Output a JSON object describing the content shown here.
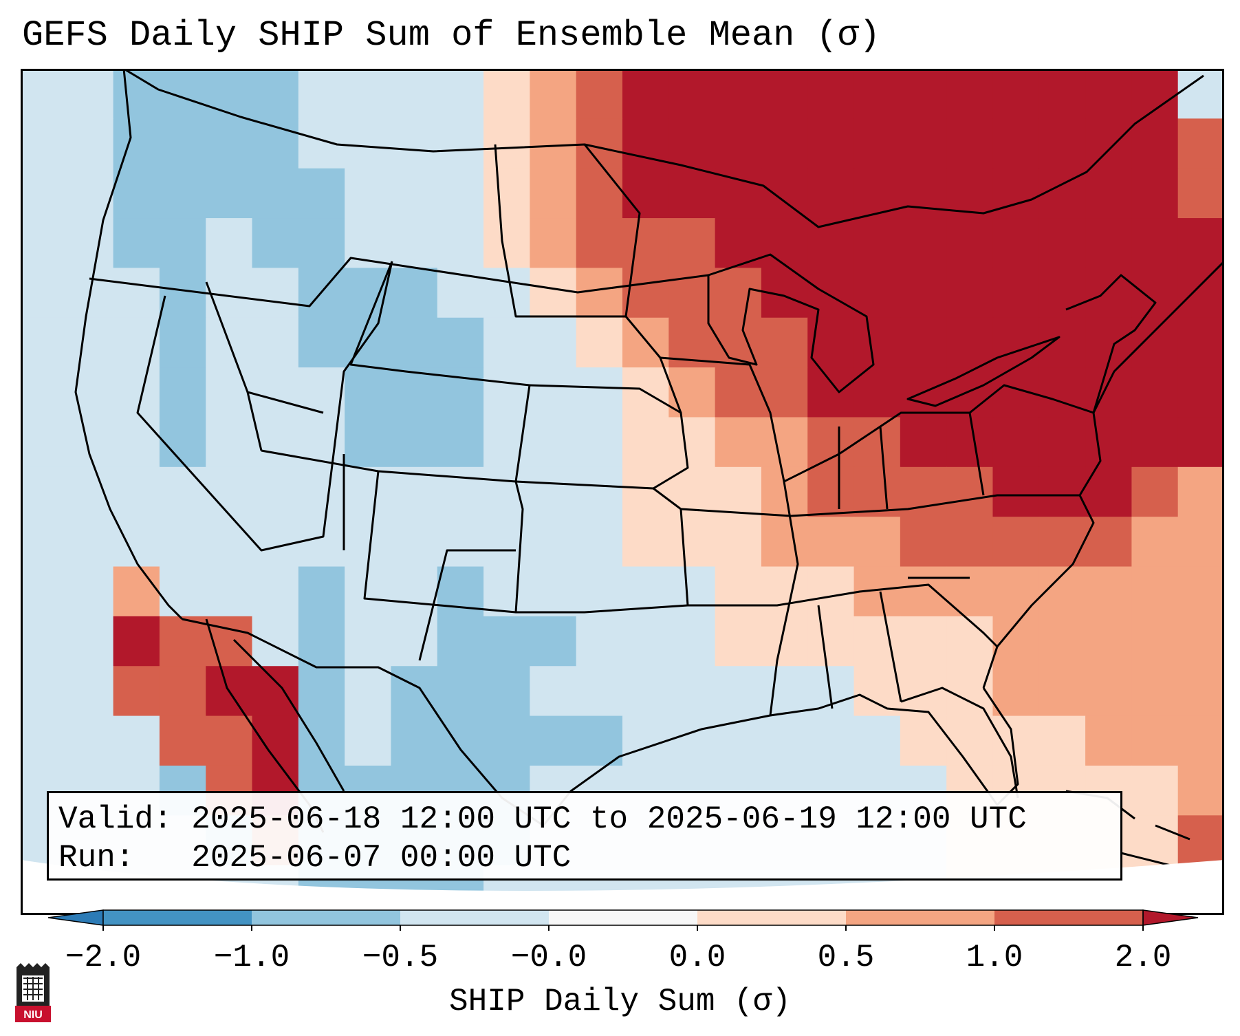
{
  "title": "GEFS Daily SHIP Sum of Ensemble Mean (σ)",
  "info": {
    "valid_label": "Valid:",
    "valid_value": "2025-06-18 12:00 UTC to 2025-06-19 12:00 UTC",
    "run_label": "Run:",
    "run_value": "2025-06-07 00:00 UTC"
  },
  "colorbar": {
    "label": "SHIP Daily Sum (σ)",
    "ticks": [
      "−2.0",
      "−1.0",
      "−0.5",
      "−0.0",
      "0.0",
      "0.5",
      "1.0",
      "2.0"
    ],
    "colors": {
      "under": "#2c7bb6",
      "bins": [
        "#4393c3",
        "#92c5de",
        "#d1e5f0",
        "#f7f7f7",
        "#fddbc7",
        "#f4a582",
        "#d6604d"
      ],
      "over": "#b2182b"
    }
  },
  "map": {
    "region": "Continental United States",
    "outline_color": "#000000",
    "field": {
      "cols": 26,
      "rows": 17,
      "description_legend": "index into colorbar classes: 0=under(<-2.0) 1=-2.0..-1.0 2=-1.0..-0.5 3=-0.5..0.0 4=0.0..0.0 5=0.0..0.5 6=0.5..1.0 7=1.0..2.0 8=over(>2.0)",
      "grid": [
        "33222233335678888888888883",
        "33222233335678888888888887",
        "33222223335678888888888887",
        "33223223335677788888888888",
        "33323322233567778888888888",
        "33323322223356777888888888",
        "33323332223335677888888888",
        "33323332223335566778888888",
        "33333333333335556777788876",
        "33333333333335556667777766",
        "33633323323333355566666666",
        "33877323322233355555566666",
        "33778823222333333355566666",
        "33377823222223333335555666",
        "33327822222333333333555556",
        "33332722222333333333555557",
        "33333322223333333333555557"
      ]
    }
  },
  "logo": {
    "text": "NIU"
  }
}
